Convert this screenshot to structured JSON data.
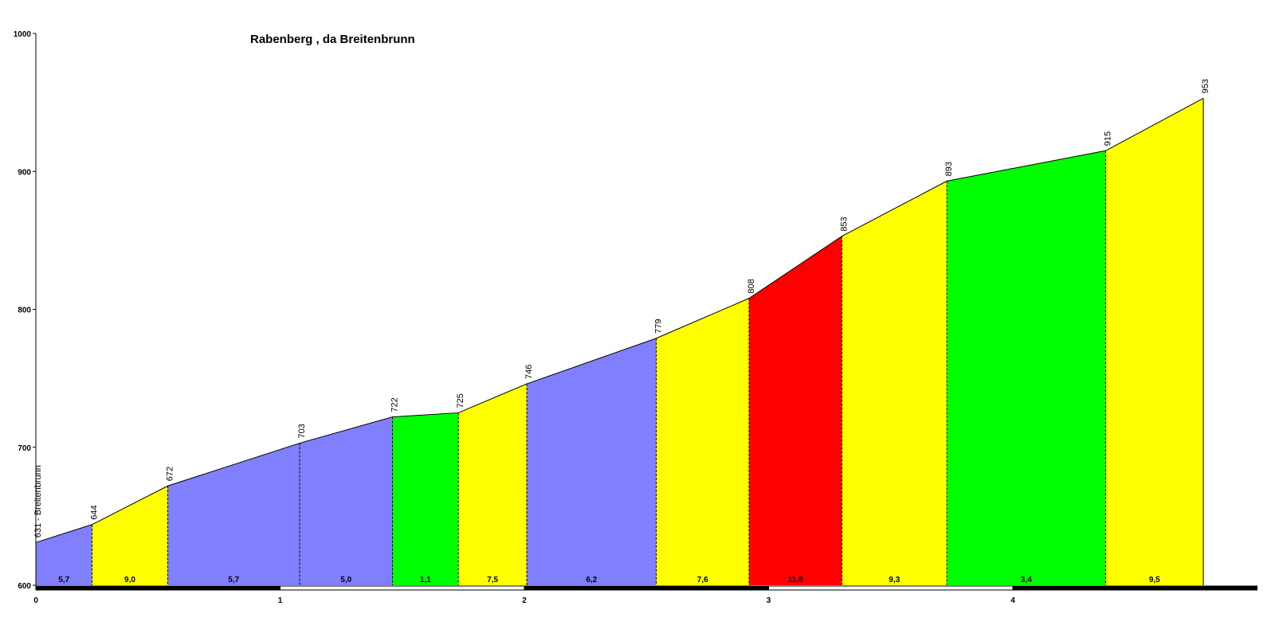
{
  "chart_data": {
    "type": "area",
    "title": "Rabenberg , da Breitenbrunn",
    "xlabel": "",
    "ylabel": "",
    "xlim": [
      0,
      5
    ],
    "ylim": [
      600,
      1000
    ],
    "x_ticks": [
      "0",
      "1",
      "2",
      "3",
      "4"
    ],
    "y_ticks": [
      "600",
      "700",
      "800",
      "900",
      "1000"
    ],
    "start_label": "631 - Breitenbrunn",
    "points": [
      {
        "km": 0.0,
        "alt": 631,
        "label": ""
      },
      {
        "km": 0.23,
        "alt": 644,
        "label": "644"
      },
      {
        "km": 0.54,
        "alt": 672,
        "label": "672"
      },
      {
        "km": 1.08,
        "alt": 703,
        "label": "703"
      },
      {
        "km": 1.46,
        "alt": 722,
        "label": "722"
      },
      {
        "km": 1.73,
        "alt": 725,
        "label": "725"
      },
      {
        "km": 2.01,
        "alt": 746,
        "label": "746"
      },
      {
        "km": 2.54,
        "alt": 779,
        "label": "779"
      },
      {
        "km": 2.92,
        "alt": 808,
        "label": "808"
      },
      {
        "km": 3.3,
        "alt": 853,
        "label": "853"
      },
      {
        "km": 3.73,
        "alt": 893,
        "label": "893"
      },
      {
        "km": 4.38,
        "alt": 915,
        "label": "915"
      },
      {
        "km": 4.78,
        "alt": 953,
        "label": "953"
      }
    ],
    "segments": [
      {
        "gradient": "5,7",
        "color": "#8080ff"
      },
      {
        "gradient": "9,0",
        "color": "#ffff00"
      },
      {
        "gradient": "5,7",
        "color": "#8080ff"
      },
      {
        "gradient": "5,0",
        "color": "#8080ff"
      },
      {
        "gradient": "1,1",
        "color": "#00ff00"
      },
      {
        "gradient": "7,5",
        "color": "#ffff00"
      },
      {
        "gradient": "6,2",
        "color": "#8080ff"
      },
      {
        "gradient": "7,6",
        "color": "#ffff00"
      },
      {
        "gradient": "11,8",
        "color": "#ff0000"
      },
      {
        "gradient": "9,3",
        "color": "#ffff00"
      },
      {
        "gradient": "3,4",
        "color": "#00ff00"
      },
      {
        "gradient": "9,5",
        "color": "#ffff00"
      }
    ],
    "grid": false,
    "legend": "none"
  }
}
